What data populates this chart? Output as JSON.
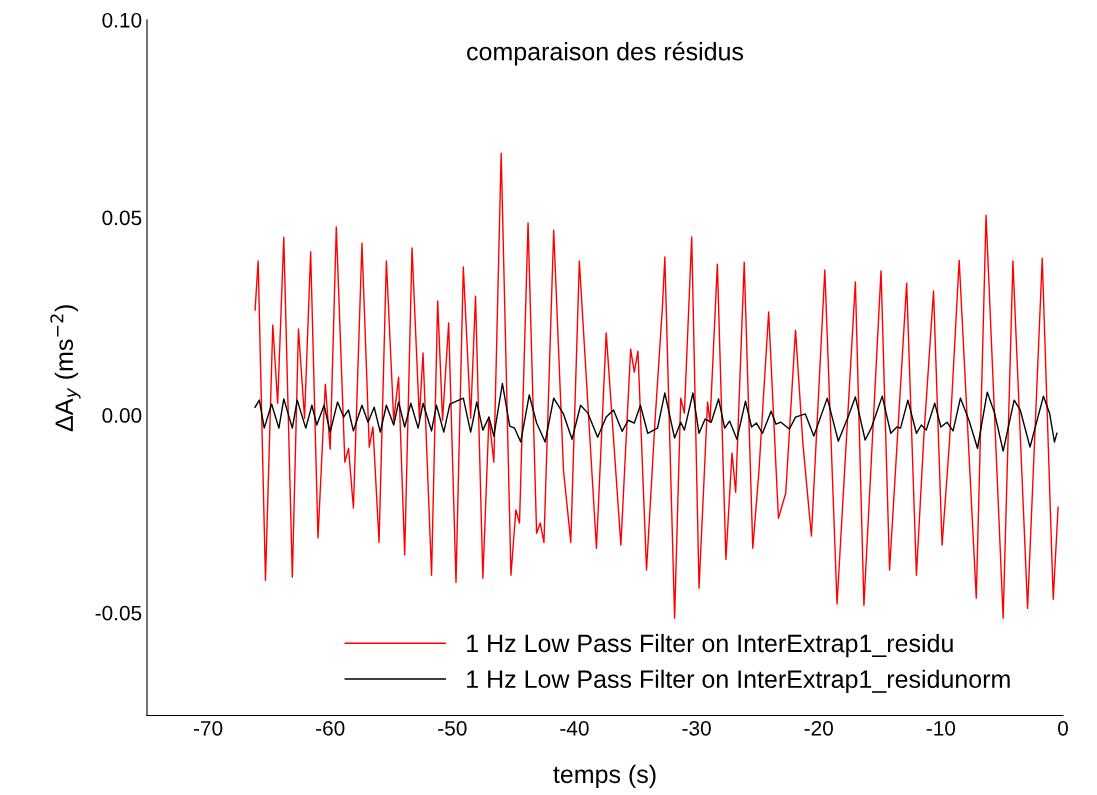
{
  "chart_data": {
    "type": "line",
    "title": "comparaison des résidus",
    "xlabel": "temps (s)",
    "ylabel": "ΔA$_{y}$ (ms$^{−2}$)",
    "xlim": [
      -75,
      0
    ],
    "xticks": [
      -70,
      -60,
      -50,
      -40,
      -30,
      -20,
      -10,
      0
    ],
    "ylim": [
      -0.076,
      0.1
    ],
    "yticks": [
      {
        "value": -0.05,
        "label": "-0.05"
      },
      {
        "value": 0,
        "label": "0.00"
      },
      {
        "value": 0.05,
        "label": "0.05"
      },
      {
        "value": 0.1,
        "label": "0.10"
      }
    ],
    "grid": false,
    "legend": "bottom",
    "marker": "none",
    "line_style": "solid",
    "series": [
      {
        "name": "1 Hz Low Pass Filter on InterExtrap1_residu",
        "color": "#ff0000",
        "x": [
          -66.15,
          -65.9,
          -65.3,
          -64.7,
          -64.3,
          -63.8,
          -63.1,
          -62.6,
          -62.1,
          -61.6,
          -61.0,
          -60.4,
          -60.0,
          -59.5,
          -58.8,
          -58.5,
          -58.1,
          -57.4,
          -56.8,
          -56.5,
          -56.0,
          -55.4,
          -54.8,
          -54.4,
          -53.9,
          -53.3,
          -52.7,
          -52.4,
          -51.7,
          -51.2,
          -50.8,
          -50.3,
          -49.7,
          -49.1,
          -48.5,
          -48.1,
          -47.5,
          -47.0,
          -46.6,
          -46.0,
          -45.2,
          -44.8,
          -44.5,
          -43.8,
          -43.1,
          -42.8,
          -42.5,
          -41.7,
          -40.9,
          -40.3,
          -39.6,
          -38.2,
          -37.4,
          -36.2,
          -35.4,
          -35.1,
          -34.8,
          -34.1,
          -33.4,
          -32.8,
          -32.6,
          -31.8,
          -31.3,
          -31.0,
          -30.4,
          -29.8,
          -29.1,
          -28.9,
          -28.3,
          -27.6,
          -27.1,
          -26.8,
          -26.1,
          -25.4,
          -24.9,
          -24.1,
          -23.3,
          -22.7,
          -21.9,
          -21.3,
          -20.6,
          -19.5,
          -18.5,
          -17.0,
          -16.3,
          -14.9,
          -14.2,
          -12.8,
          -12.0,
          -11.4,
          -10.6,
          -9.9,
          -9.3,
          -8.5,
          -7.1,
          -6.3,
          -4.9,
          -4.1,
          -2.9,
          -1.7,
          -0.8,
          -0.4
        ],
        "values": [
          0.0266,
          0.039,
          -0.0418,
          0.0228,
          0.003,
          0.045,
          -0.041,
          0.0218,
          -0.0008,
          0.0413,
          -0.0311,
          0.0078,
          -0.0086,
          0.0476,
          -0.0119,
          -0.0084,
          -0.0235,
          0.0435,
          -0.0081,
          -0.003,
          -0.0322,
          0.039,
          -0.0013,
          0.0096,
          -0.0354,
          0.0423,
          -0.0008,
          0.0157,
          -0.0405,
          0.0289,
          -0.0013,
          0.0233,
          -0.0423,
          0.0375,
          -0.0008,
          0.0301,
          -0.0413,
          -0.0005,
          -0.0119,
          0.0663,
          -0.0405,
          -0.024,
          -0.0273,
          0.0486,
          -0.0299,
          -0.0273,
          -0.0322,
          0.0468,
          -0.0139,
          -0.0322,
          0.039,
          -0.0337,
          0.0208,
          -0.0329,
          0.0167,
          0.0109,
          0.0162,
          -0.0392,
          -0.0013,
          0.0273,
          0.04,
          -0.0514,
          0.0043,
          0.0005,
          0.0451,
          -0.0438,
          0.0033,
          -0.0018,
          0.0382,
          -0.0365,
          -0.0096,
          -0.0195,
          0.0387,
          -0.0337,
          -0.0144,
          0.0261,
          -0.0261,
          -0.0197,
          0.0215,
          -0.0071,
          -0.0306,
          0.0367,
          -0.0478,
          0.0337,
          -0.0481,
          0.0365,
          -0.0392,
          0.0334,
          -0.0405,
          -0.0058,
          0.0314,
          -0.0329,
          -0.0071,
          0.0392,
          -0.0463,
          0.0506,
          -0.0514,
          0.039,
          -0.0489,
          0.0397,
          -0.0466,
          -0.0233
        ]
      },
      {
        "name": "1 Hz Low Pass Filter on InterExtrap1_residunorm",
        "color": "#000000",
        "x": [
          -66.15,
          -65.8,
          -65.4,
          -64.8,
          -64.2,
          -63.8,
          -63.1,
          -62.7,
          -62.0,
          -61.5,
          -61.1,
          -60.5,
          -60.0,
          -59.4,
          -58.9,
          -58.5,
          -58.1,
          -57.4,
          -56.9,
          -56.4,
          -55.9,
          -55.4,
          -54.8,
          -54.4,
          -53.9,
          -53.4,
          -52.8,
          -52.4,
          -51.7,
          -51.3,
          -50.7,
          -50.2,
          -49.1,
          -48.5,
          -48.0,
          -47.5,
          -47.0,
          -46.6,
          -45.9,
          -45.3,
          -44.9,
          -44.4,
          -43.7,
          -43.1,
          -42.4,
          -41.7,
          -40.9,
          -40.2,
          -39.5,
          -38.9,
          -38.1,
          -37.4,
          -36.8,
          -36.1,
          -35.6,
          -35.1,
          -34.6,
          -34.0,
          -33.2,
          -32.6,
          -31.8,
          -31.3,
          -31.0,
          -30.3,
          -29.8,
          -29.3,
          -28.8,
          -28.2,
          -27.7,
          -27.3,
          -26.7,
          -26.0,
          -25.5,
          -25.1,
          -24.6,
          -23.9,
          -23.5,
          -23.1,
          -22.4,
          -21.9,
          -21.1,
          -20.4,
          -19.3,
          -18.4,
          -17.6,
          -17.0,
          -16.2,
          -15.7,
          -14.8,
          -14.1,
          -13.6,
          -13.3,
          -12.7,
          -12.0,
          -11.6,
          -11.2,
          -10.5,
          -10.0,
          -9.5,
          -9.0,
          -8.4,
          -7.7,
          -7.0,
          -6.2,
          -5.6,
          -4.9,
          -4.0,
          -3.5,
          -2.7,
          -1.6,
          -1.1,
          -0.7,
          -0.5
        ],
        "values": [
          0.002,
          0.0038,
          -0.0033,
          0.0028,
          -0.0033,
          0.0041,
          -0.0033,
          0.0038,
          -0.0033,
          0.0025,
          -0.0025,
          0.0025,
          -0.0043,
          0.0033,
          -0.0005,
          0.0013,
          -0.004,
          0.0025,
          -0.0018,
          0.002,
          -0.0043,
          0.0025,
          -0.0025,
          0.0033,
          -0.003,
          0.003,
          -0.0033,
          0.003,
          -0.004,
          0.0025,
          -0.0043,
          0.0028,
          0.0043,
          -0.0043,
          0.0033,
          -0.0038,
          -0.0005,
          -0.0053,
          0.008,
          -0.0028,
          -0.0033,
          -0.0068,
          0.0051,
          -0.002,
          -0.0068,
          0.0043,
          0.0003,
          -0.0061,
          0.0025,
          0.0005,
          -0.0056,
          -0.0005,
          0.0013,
          -0.0041,
          -0.0013,
          -0.002,
          0.0025,
          -0.0046,
          -0.0033,
          0.0056,
          -0.0058,
          -0.0018,
          -0.0038,
          0.0056,
          -0.0046,
          -0.001,
          -0.0018,
          0.0041,
          -0.0033,
          -0.0015,
          -0.0061,
          0.0035,
          -0.003,
          -0.002,
          -0.0046,
          0.001,
          -0.0023,
          -0.0018,
          -0.0035,
          -0.0005,
          0.0003,
          -0.0053,
          0.0043,
          -0.0066,
          -0.0005,
          0.0046,
          -0.0063,
          -0.0033,
          0.0048,
          -0.0046,
          -0.003,
          -0.0033,
          0.0038,
          -0.0046,
          -0.0025,
          -0.0038,
          0.003,
          -0.003,
          -0.0018,
          -0.004,
          0.0043,
          -0.0013,
          -0.0084,
          0.0058,
          0.0005,
          -0.0091,
          0.0038,
          0.0013,
          -0.0081,
          0.0048,
          0.0005,
          -0.0068,
          -0.0046
        ]
      }
    ]
  }
}
